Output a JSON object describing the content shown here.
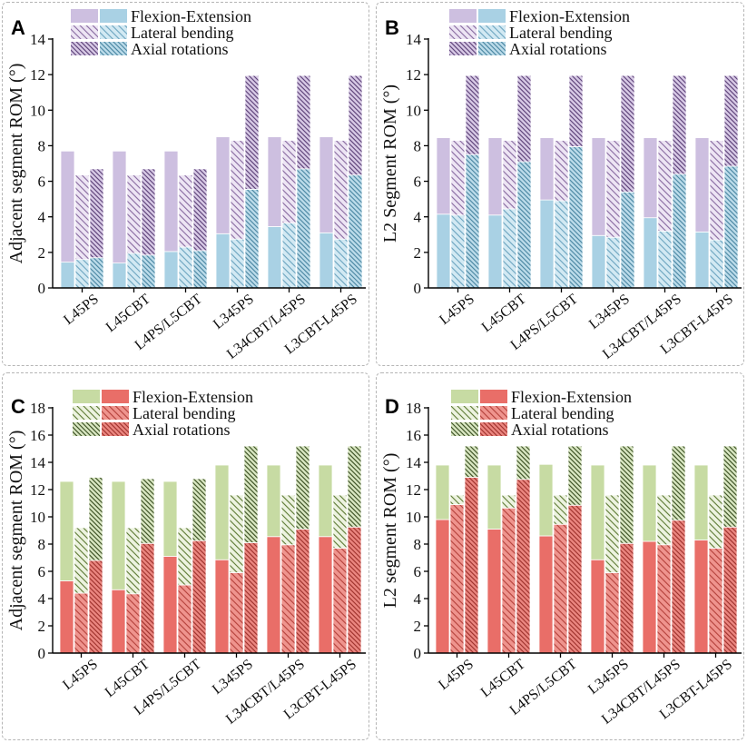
{
  "chart_data": [
    {
      "panel_label": "A",
      "type": "bar",
      "stacked": true,
      "title": "",
      "xlabel": "",
      "ylabel": "Adjacent segment ROM (°)",
      "ylim": [
        0,
        14
      ],
      "yticks": [
        0,
        2,
        4,
        6,
        8,
        10,
        12,
        14
      ],
      "grid": false,
      "legend_position": "top-left",
      "categories": [
        "L45PS",
        "L45CBT",
        "L4PS/L5CBT",
        "L345PS",
        "L34CBT/L45PS",
        "L3CBT-L45PS"
      ],
      "series": [
        {
          "name": "Flexion-Extension",
          "bottom": [
            1.45,
            1.4,
            2.05,
            3.05,
            3.45,
            3.1
          ],
          "total": [
            7.7,
            7.7,
            7.7,
            8.5,
            8.5,
            8.5
          ]
        },
        {
          "name": "Lateral bending",
          "bottom": [
            1.6,
            1.95,
            2.3,
            2.75,
            3.65,
            2.75
          ],
          "total": [
            6.35,
            6.35,
            6.35,
            8.3,
            8.3,
            8.3
          ]
        },
        {
          "name": "Axial rotations",
          "bottom": [
            1.7,
            1.85,
            2.1,
            5.55,
            6.7,
            6.35
          ],
          "total": [
            6.7,
            6.7,
            6.7,
            11.95,
            11.95,
            11.95
          ]
        }
      ],
      "palette": {
        "upper_solid": "#cdbfe0",
        "lower_solid": "#a9d1e4",
        "upper_hatch_bg": "#ede5f4",
        "upper_hatch_line": "#86699f",
        "lower_hatch_bg": "#d2e9f3",
        "lower_hatch_line": "#6aa3bf",
        "upper_dense_bg": "#d8cae6",
        "upper_dense_line": "#563a72",
        "lower_dense_bg": "#bcdcea",
        "lower_dense_line": "#44829f"
      }
    },
    {
      "panel_label": "B",
      "type": "bar",
      "stacked": true,
      "title": "",
      "xlabel": "",
      "ylabel": "L2 Segment ROM (°)",
      "ylim": [
        0,
        14
      ],
      "yticks": [
        0,
        2,
        4,
        6,
        8,
        10,
        12,
        14
      ],
      "grid": false,
      "legend_position": "top-left",
      "categories": [
        "L45PS",
        "L45CBT",
        "L4PS/L5CBT",
        "L345PS",
        "L34CBT/L45PS",
        "L3CBT-L45PS"
      ],
      "series": [
        {
          "name": "Flexion-Extension",
          "bottom": [
            4.15,
            4.1,
            4.95,
            2.95,
            3.95,
            3.15
          ],
          "total": [
            8.45,
            8.45,
            8.45,
            8.45,
            8.45,
            8.45
          ]
        },
        {
          "name": "Lateral bending",
          "bottom": [
            4.1,
            4.45,
            4.9,
            2.85,
            3.2,
            2.7
          ],
          "total": [
            8.3,
            8.3,
            8.3,
            8.3,
            8.3,
            8.3
          ]
        },
        {
          "name": "Axial rotations",
          "bottom": [
            7.5,
            7.1,
            7.95,
            5.4,
            6.4,
            6.85
          ],
          "total": [
            11.95,
            11.95,
            11.95,
            11.95,
            11.95,
            11.95
          ]
        }
      ],
      "palette": {
        "upper_solid": "#cdbfe0",
        "lower_solid": "#a9d1e4",
        "upper_hatch_bg": "#ede5f4",
        "upper_hatch_line": "#86699f",
        "lower_hatch_bg": "#d2e9f3",
        "lower_hatch_line": "#6aa3bf",
        "upper_dense_bg": "#d8cae6",
        "upper_dense_line": "#563a72",
        "lower_dense_bg": "#bcdcea",
        "lower_dense_line": "#44829f"
      }
    },
    {
      "panel_label": "C",
      "type": "bar",
      "stacked": true,
      "title": "",
      "xlabel": "",
      "ylabel": "Adjacent segment ROM (°)",
      "ylim": [
        0,
        18
      ],
      "yticks": [
        0,
        2,
        4,
        6,
        8,
        10,
        12,
        14,
        16,
        18
      ],
      "grid": false,
      "legend_position": "top-left",
      "categories": [
        "L45PS",
        "L45CBT",
        "L4PS/L5CBT",
        "L345PS",
        "L34CBT/L45PS",
        "L3CBT-L45PS"
      ],
      "series": [
        {
          "name": "Flexion-Extension",
          "bottom": [
            5.3,
            4.65,
            7.1,
            6.85,
            8.55,
            8.55
          ],
          "total": [
            12.6,
            12.6,
            12.6,
            13.8,
            13.8,
            13.8
          ]
        },
        {
          "name": "Lateral bending",
          "bottom": [
            4.4,
            4.35,
            5.0,
            5.9,
            7.95,
            7.7
          ],
          "total": [
            9.2,
            9.2,
            9.2,
            11.6,
            11.6,
            11.6
          ]
        },
        {
          "name": "Axial rotations",
          "bottom": [
            6.8,
            8.05,
            8.25,
            8.1,
            9.1,
            9.25
          ],
          "total": [
            12.9,
            12.8,
            12.8,
            15.2,
            15.2,
            15.2
          ]
        }
      ],
      "palette": {
        "upper_solid": "#c7dba3",
        "lower_solid": "#e96e68",
        "upper_hatch_bg": "#edf3e0",
        "upper_hatch_line": "#5b7831",
        "lower_hatch_bg": "#ef948e",
        "lower_hatch_line": "#b3403a",
        "upper_dense_bg": "#d9e7c2",
        "upper_dense_line": "#32471a",
        "lower_dense_bg": "#eb8680",
        "lower_dense_line": "#9a2d28"
      }
    },
    {
      "panel_label": "D",
      "type": "bar",
      "stacked": true,
      "title": "",
      "xlabel": "",
      "ylabel": "L2 segment ROM (°)",
      "ylim": [
        0,
        18
      ],
      "yticks": [
        0,
        2,
        4,
        6,
        8,
        10,
        12,
        14,
        16,
        18
      ],
      "grid": false,
      "legend_position": "top-left",
      "categories": [
        "L45PS",
        "L45CBT",
        "L4PS/L5CBT",
        "L345PS",
        "L34CBT/L45PS",
        "L3CBT-L45PS"
      ],
      "series": [
        {
          "name": "Flexion-Extension",
          "bottom": [
            9.8,
            9.1,
            8.6,
            6.85,
            8.2,
            8.3
          ],
          "total": [
            13.8,
            13.8,
            13.85,
            13.8,
            13.8,
            13.8
          ]
        },
        {
          "name": "Lateral bending",
          "bottom": [
            10.9,
            10.65,
            9.45,
            5.9,
            7.95,
            7.7
          ],
          "total": [
            11.6,
            11.6,
            11.6,
            11.6,
            11.6,
            11.6
          ]
        },
        {
          "name": "Axial rotations",
          "bottom": [
            12.9,
            12.75,
            10.85,
            8.05,
            9.75,
            9.25
          ],
          "total": [
            15.2,
            15.2,
            15.2,
            15.2,
            15.2,
            15.2
          ]
        }
      ],
      "palette": {
        "upper_solid": "#c7dba3",
        "lower_solid": "#e96e68",
        "upper_hatch_bg": "#edf3e0",
        "upper_hatch_line": "#5b7831",
        "lower_hatch_bg": "#ef948e",
        "lower_hatch_line": "#b3403a",
        "upper_dense_bg": "#d9e7c2",
        "upper_dense_line": "#32471a",
        "lower_dense_bg": "#eb8680",
        "lower_dense_line": "#9a2d28"
      }
    }
  ]
}
